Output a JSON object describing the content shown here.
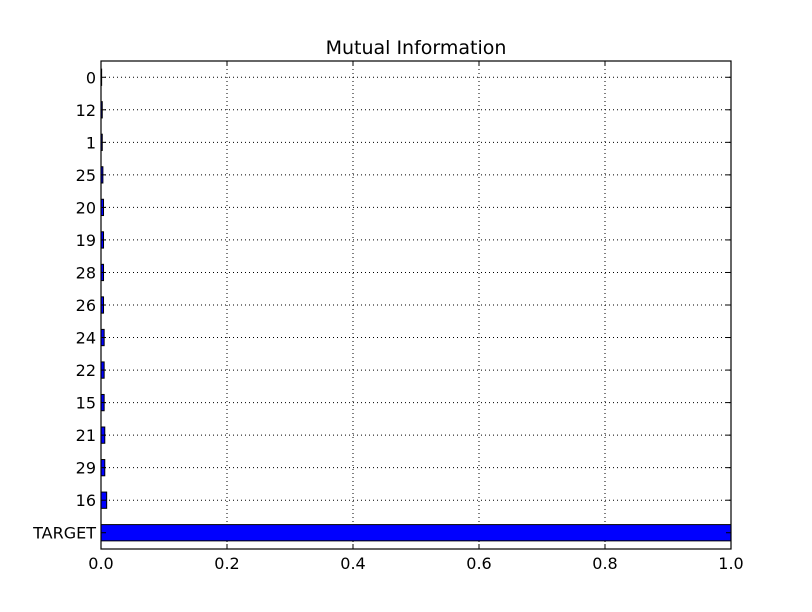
{
  "chart_data": {
    "type": "bar",
    "orientation": "horizontal",
    "title": "Mutual Information",
    "xlabel": "",
    "ylabel": "",
    "categories": [
      "TARGET",
      "16",
      "29",
      "21",
      "15",
      "22",
      "24",
      "26",
      "28",
      "19",
      "20",
      "25",
      "1",
      "12",
      "0"
    ],
    "values": [
      1.0,
      0.009,
      0.006,
      0.006,
      0.005,
      0.005,
      0.005,
      0.004,
      0.004,
      0.004,
      0.004,
      0.003,
      0.002,
      0.002,
      0.001
    ],
    "xlim": [
      0.0,
      1.0
    ],
    "xticks": [
      "0.0",
      "0.2",
      "0.4",
      "0.6",
      "0.8",
      "1.0"
    ],
    "grid": true,
    "bar_color": "#0000ff",
    "legend": false
  }
}
